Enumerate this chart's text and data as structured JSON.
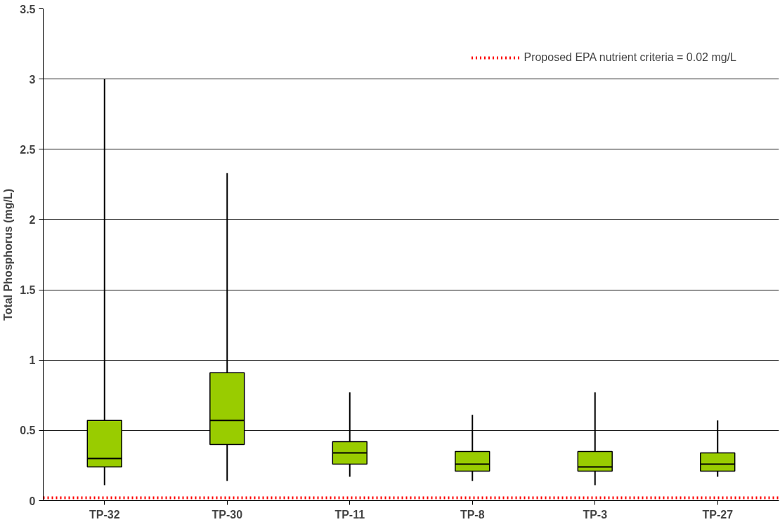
{
  "chart_data": {
    "type": "box",
    "ylabel": "Total Phosphorus (mg/L)",
    "categories": [
      "TP-32",
      "TP-30",
      "TP-11",
      "TP-8",
      "TP-3",
      "TP-27"
    ],
    "series": [
      {
        "color": "#99cc00",
        "boxes": [
          {
            "low": 0.11,
            "q1": 0.24,
            "median": 0.3,
            "q3": 0.57,
            "high": 3.0
          },
          {
            "low": 0.14,
            "q1": 0.4,
            "median": 0.57,
            "q3": 0.91,
            "high": 2.33
          },
          {
            "low": 0.17,
            "q1": 0.26,
            "median": 0.34,
            "q3": 0.42,
            "high": 0.77
          },
          {
            "low": 0.14,
            "q1": 0.21,
            "median": 0.26,
            "q3": 0.35,
            "high": 0.61
          },
          {
            "low": 0.11,
            "q1": 0.21,
            "median": 0.24,
            "q3": 0.35,
            "high": 0.77
          },
          {
            "low": 0.17,
            "q1": 0.21,
            "median": 0.26,
            "q3": 0.34,
            "high": 0.57
          }
        ]
      }
    ],
    "ylim": [
      0,
      3.5
    ],
    "yticks": [
      0,
      0.5,
      1,
      1.5,
      2,
      2.5,
      3,
      3.5
    ],
    "ref_lines": [
      {
        "axis": "y",
        "value": 0.02,
        "label": "Proposed EPA nutrient criteria = 0.02 mg/L",
        "color": "#ff0000",
        "line_style": "dotted"
      }
    ],
    "grid": "y",
    "legend": "top right"
  }
}
